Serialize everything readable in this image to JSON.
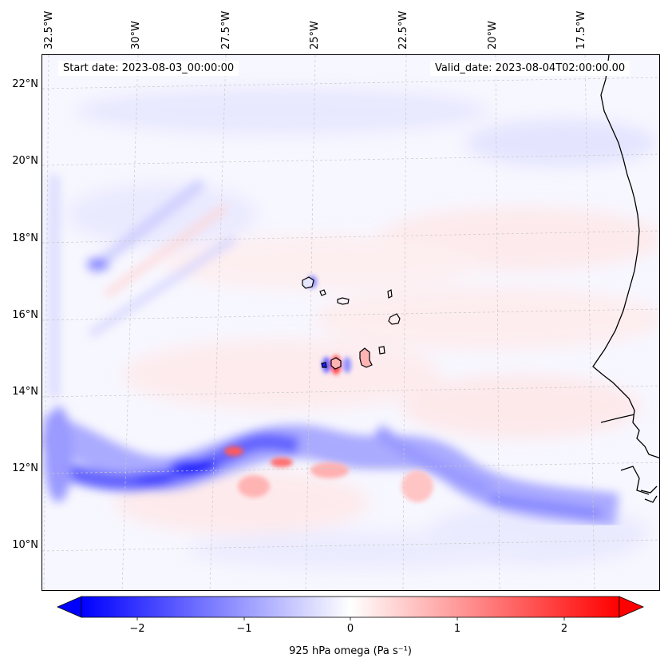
{
  "map": {
    "start_date": "Start date: 2023-08-03_00:00:00",
    "valid_date": "Valid_date: 2023-08-04T02:00:00.00",
    "lon_labels": [
      "32.5°W",
      "30°W",
      "27.5°W",
      "25°W",
      "22.5°W",
      "20°W",
      "17.5°W"
    ],
    "lat_labels": [
      "22°N",
      "20°N",
      "18°N",
      "16°N",
      "14°N",
      "12°N",
      "10°N"
    ],
    "colors": {
      "negative": "#0000ff",
      "neutral": "#ffffff",
      "positive": "#ff0000",
      "coast": "#000000",
      "grid": "#c8c8c8"
    }
  },
  "colorbar": {
    "label": "925 hPa omega (Pa s⁻¹)",
    "ticks": [
      "−2",
      "−1",
      "0",
      "1",
      "2"
    ],
    "range": [
      -2.6,
      2.6
    ]
  }
}
